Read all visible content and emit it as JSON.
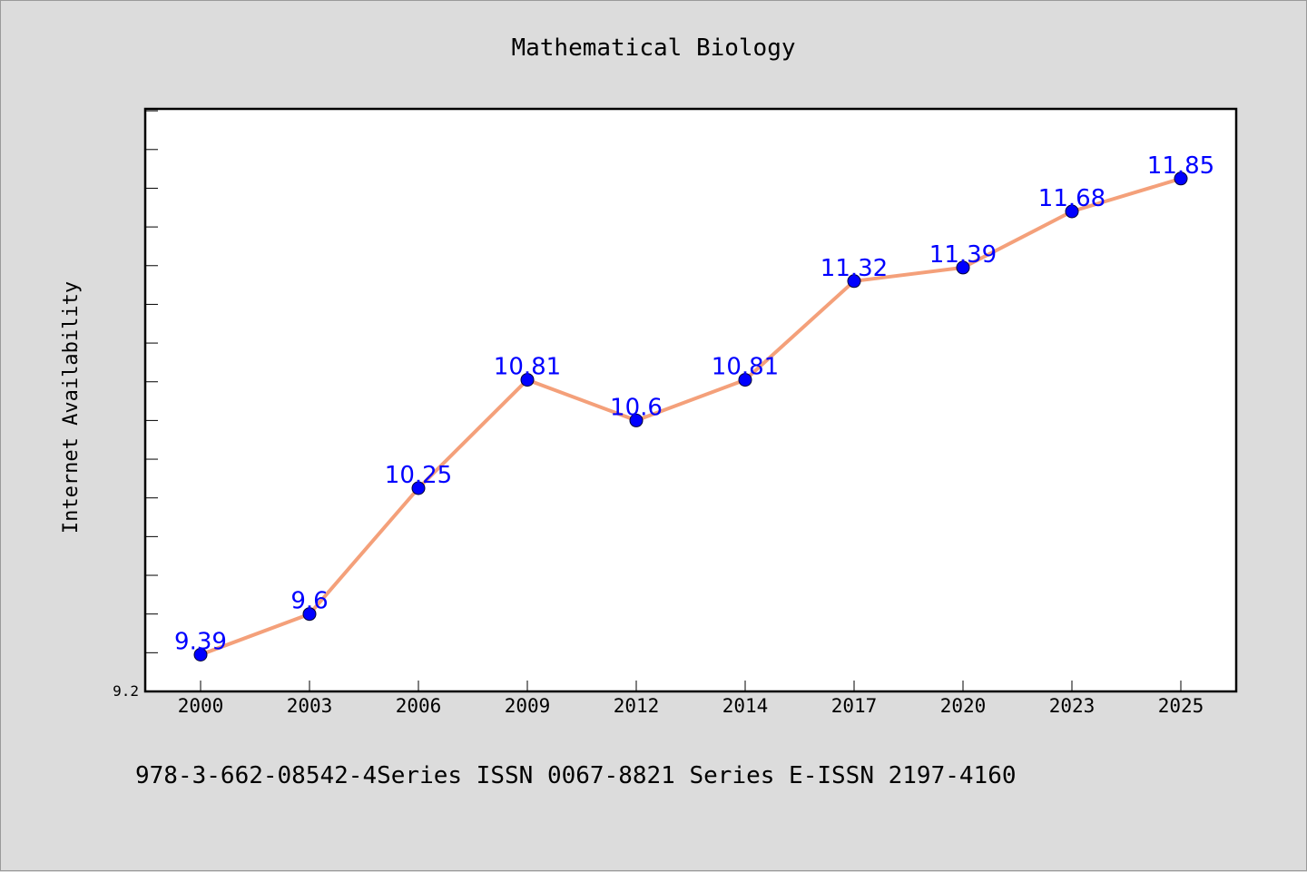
{
  "chart_data": {
    "type": "line",
    "title": "Mathematical Biology",
    "xlabel": "",
    "ylabel": "Internet Availability",
    "categories": [
      "2000",
      "2003",
      "2006",
      "2009",
      "2012",
      "2014",
      "2017",
      "2020",
      "2023",
      "2025"
    ],
    "series": [
      {
        "values": [
          9.39,
          9.6,
          10.25,
          10.81,
          10.6,
          10.81,
          11.32,
          11.39,
          11.68,
          11.85
        ]
      }
    ],
    "data_labels": [
      "9.39",
      "9.6",
      "10.25",
      "10.81",
      "10.6",
      "10.81",
      "11.32",
      "11.39",
      "11.68",
      "11.85"
    ],
    "yticks": [
      "9.2"
    ],
    "ylim": [
      9.2,
      12.21
    ],
    "grid": false,
    "legend": "none",
    "colors": {
      "line": "#f4a07a",
      "marker": "#0000ff",
      "data_label": "#0000ff",
      "plot_bg": "#ffffff",
      "page_bg": "#dcdcdc"
    }
  },
  "footer": {
    "text": "978-3-662-08542-4Series ISSN 0067-8821 Series E-ISSN 2197-4160"
  }
}
